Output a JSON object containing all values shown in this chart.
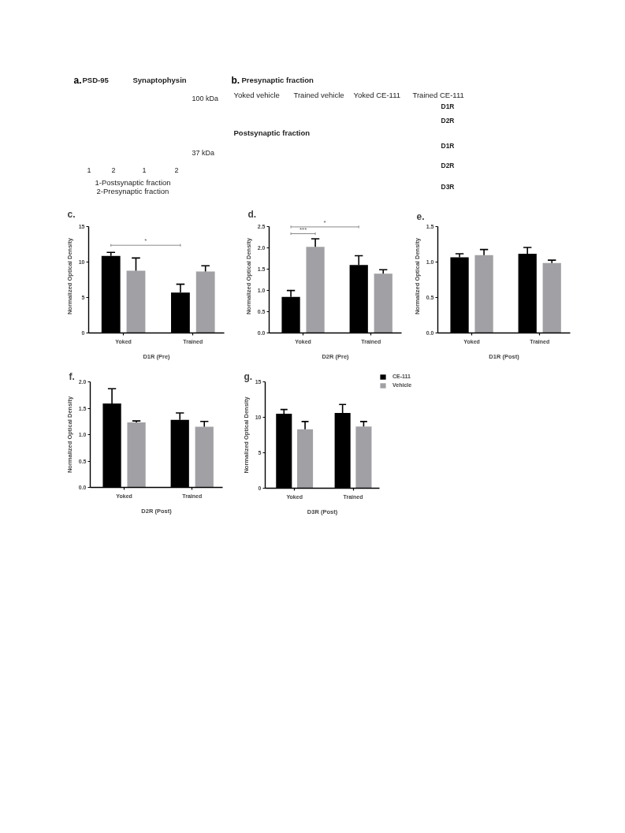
{
  "chart_data": [
    {
      "type": "other",
      "title": "a.",
      "annotations": [
        "PSD-95",
        "Synaptophysin",
        "100 kDa",
        "37 kDa",
        "1",
        "2",
        "1",
        "2",
        "1-Postsynaptic fraction",
        "2-Presynaptic fraction"
      ]
    },
    {
      "type": "other",
      "title": "b.",
      "annotations": [
        "Presynaptic fraction",
        "Yoked vehicle",
        "Trained vehicle",
        "Yoked CE-111",
        "Trained CE-111",
        "D1R",
        "D2R",
        "Postsynaptic fraction",
        "D1R",
        "D2R",
        "D3R"
      ]
    },
    {
      "type": "bar",
      "title": "c.",
      "xlabel": "D1R (Pre)",
      "ylabel": "Normalized Optical Density",
      "categories": [
        "Yoked",
        "Trained"
      ],
      "series": [
        {
          "color": "#000000",
          "values": [
            10.9,
            5.7
          ],
          "errors": [
            [
              10.9,
              11.4
            ],
            [
              5.7,
              6.9
            ]
          ]
        },
        {
          "color": "#a1a1a5",
          "values": [
            8.8,
            8.7
          ],
          "errors": [
            [
              8.8,
              10.6
            ],
            [
              8.7,
              9.5
            ]
          ]
        }
      ],
      "ylim": [
        0,
        15
      ],
      "yticks": [
        0,
        5,
        10,
        15
      ],
      "annotations": [
        "*"
      ]
    },
    {
      "type": "bar",
      "title": "d.",
      "xlabel": "D2R (Pre)",
      "ylabel": "Normalized Optical Density",
      "categories": [
        "Yoked",
        "Trained"
      ],
      "series": [
        {
          "color": "#000000",
          "values": [
            0.85,
            1.6
          ],
          "errors": [
            [
              0.85,
              1.0
            ],
            [
              1.6,
              1.82
            ]
          ]
        },
        {
          "color": "#a1a1a5",
          "values": [
            2.03,
            1.4
          ],
          "errors": [
            [
              2.03,
              2.22
            ],
            [
              1.4,
              1.49
            ]
          ]
        }
      ],
      "ylim": [
        0,
        2.5
      ],
      "yticks": [
        {
          "value": 0,
          "label": "0.0"
        },
        0.5,
        {
          "value": 1,
          "label": "1.0"
        },
        1.5,
        {
          "value": 2,
          "label": "2.0"
        },
        2.5
      ],
      "annotations": [
        "*",
        "***"
      ]
    },
    {
      "type": "bar",
      "title": "e.",
      "xlabel": "D1R (Post)",
      "ylabel": "Normalized Optical Density",
      "categories": [
        "Yoked",
        "Trained"
      ],
      "series": [
        {
          "color": "#000000",
          "values": [
            1.07,
            1.12
          ],
          "errors": [
            [
              1.07,
              1.12
            ],
            [
              1.12,
              1.21
            ]
          ]
        },
        {
          "color": "#a1a1a5",
          "values": [
            1.1,
            0.99
          ],
          "errors": [
            [
              1.1,
              1.18
            ],
            [
              0.99,
              1.03
            ]
          ]
        }
      ],
      "ylim": [
        0,
        1.5
      ],
      "yticks": [
        {
          "value": 0,
          "label": "0.0"
        },
        0.5,
        {
          "value": 1,
          "label": "1.0"
        },
        1.5
      ]
    },
    {
      "type": "bar",
      "title": "f.",
      "xlabel": "D2R (Post)",
      "ylabel": "Normalized Optical Density",
      "categories": [
        "Yoked",
        "Trained"
      ],
      "series": [
        {
          "color": "#000000",
          "values": [
            1.59,
            1.28
          ],
          "errors": [
            [
              1.59,
              1.87
            ],
            [
              1.28,
              1.41
            ]
          ]
        },
        {
          "color": "#a1a1a5",
          "values": [
            1.23,
            1.15
          ],
          "errors": [
            [
              1.23,
              1.26
            ],
            [
              1.15,
              1.25
            ]
          ]
        }
      ],
      "ylim": [
        0,
        2
      ],
      "yticks": [
        {
          "value": 0,
          "label": "0.0"
        },
        0.5,
        {
          "value": 1,
          "label": "1.0"
        },
        1.5,
        {
          "value": 2,
          "label": "2.0"
        }
      ]
    },
    {
      "type": "bar",
      "title": "g.",
      "xlabel": "D3R (Post)",
      "ylabel": "Normalized Optical Density",
      "categories": [
        "Yoked",
        "Trained"
      ],
      "series": [
        {
          "name": "CE-111",
          "color": "#000000",
          "values": [
            10.5,
            10.6
          ],
          "errors": [
            [
              10.5,
              11.1
            ],
            [
              10.6,
              11.8
            ]
          ]
        },
        {
          "name": "Vehicle",
          "color": "#a1a1a5",
          "values": [
            8.3,
            8.7
          ],
          "errors": [
            [
              8.3,
              9.4
            ],
            [
              8.7,
              9.4
            ]
          ]
        }
      ],
      "ylim": [
        0,
        15
      ],
      "yticks": [
        0,
        5,
        10,
        15
      ],
      "legend": "right"
    }
  ]
}
